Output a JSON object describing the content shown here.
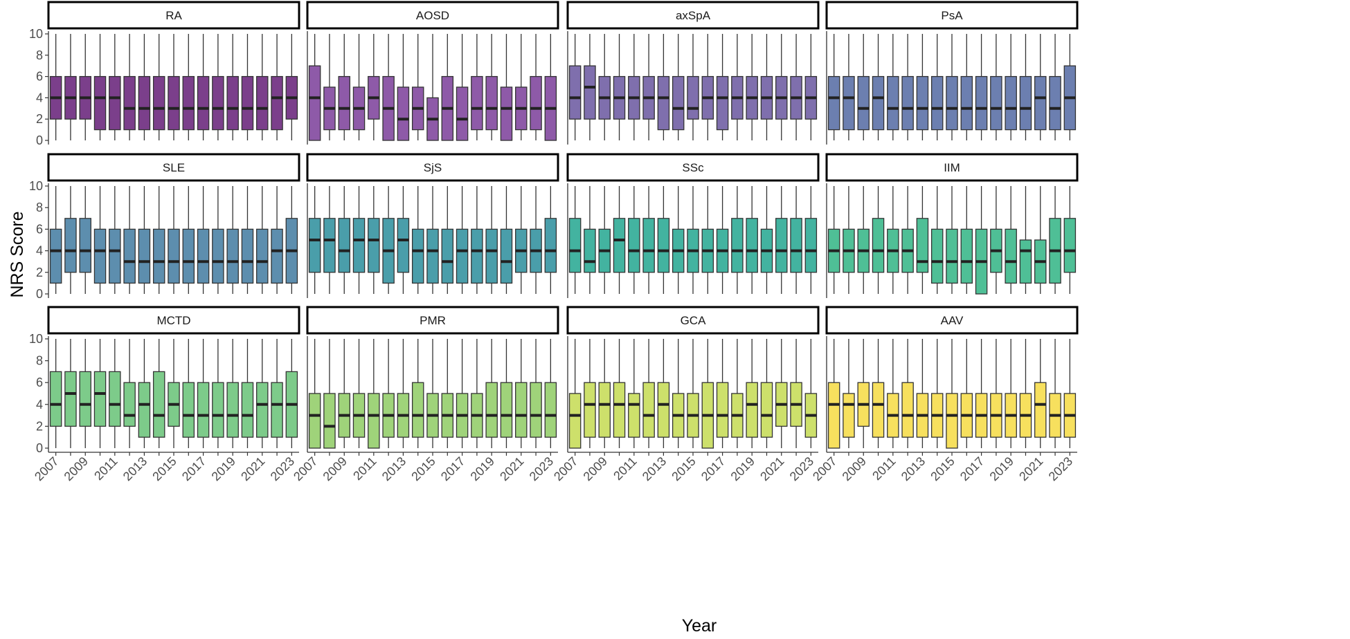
{
  "chart_data": {
    "type": "boxplot",
    "layout": "facet-grid",
    "xlabel": "Year",
    "ylabel": "NRS Score",
    "ylim": [
      0,
      10
    ],
    "yticks": [
      0,
      2,
      4,
      6,
      8,
      10
    ],
    "years": [
      2007,
      2008,
      2009,
      2010,
      2011,
      2012,
      2013,
      2014,
      2015,
      2016,
      2017,
      2018,
      2019,
      2020,
      2021,
      2022,
      2023
    ],
    "xtick_labels": [
      "2007",
      "2009",
      "2011",
      "2013",
      "2015",
      "2017",
      "2019",
      "2021",
      "2023"
    ],
    "panels": [
      {
        "name": "RA",
        "color": "#7b3f8b",
        "q1": [
          2,
          2,
          2,
          1,
          1,
          1,
          1,
          1,
          1,
          1,
          1,
          1,
          1,
          1,
          1,
          1,
          2
        ],
        "med": [
          4,
          4,
          4,
          4,
          4,
          3,
          3,
          3,
          3,
          3,
          3,
          3,
          3,
          3,
          3,
          4,
          4
        ],
        "q3": [
          6,
          6,
          6,
          6,
          6,
          6,
          6,
          6,
          6,
          6,
          6,
          6,
          6,
          6,
          6,
          6,
          6
        ],
        "lo": [
          0,
          0,
          0,
          0,
          0,
          0,
          0,
          0,
          0,
          0,
          0,
          0,
          0,
          0,
          0,
          0,
          0
        ],
        "hi": [
          10,
          10,
          10,
          10,
          10,
          10,
          10,
          10,
          10,
          10,
          10,
          10,
          10,
          10,
          10,
          10,
          10
        ]
      },
      {
        "name": "AOSD",
        "color": "#8e5aa8",
        "q1": [
          0,
          1,
          1,
          1,
          2,
          0,
          0,
          1,
          0,
          0,
          0,
          1,
          1,
          0,
          1,
          1,
          0
        ],
        "med": [
          4,
          3,
          3,
          3,
          4,
          3,
          2,
          3,
          2,
          3,
          2,
          3,
          3,
          3,
          3,
          3,
          3
        ],
        "q3": [
          7,
          5,
          6,
          5,
          6,
          6,
          5,
          5,
          4,
          6,
          5,
          6,
          6,
          5,
          5,
          6,
          6
        ],
        "lo": [
          0,
          0,
          0,
          0,
          0,
          0,
          0,
          0,
          0,
          0,
          0,
          0,
          0,
          0,
          0,
          0,
          0
        ],
        "hi": [
          10,
          10,
          10,
          10,
          10,
          10,
          10,
          10,
          10,
          10,
          10,
          10,
          10,
          10,
          10,
          10,
          10
        ]
      },
      {
        "name": "axSpA",
        "color": "#7f6fad",
        "q1": [
          2,
          2,
          2,
          2,
          2,
          2,
          1,
          1,
          2,
          2,
          1,
          2,
          2,
          2,
          2,
          2,
          2
        ],
        "med": [
          4,
          5,
          4,
          4,
          4,
          4,
          4,
          3,
          3,
          4,
          4,
          4,
          4,
          4,
          4,
          4,
          4
        ],
        "q3": [
          7,
          7,
          6,
          6,
          6,
          6,
          6,
          6,
          6,
          6,
          6,
          6,
          6,
          6,
          6,
          6,
          6
        ],
        "lo": [
          0,
          0,
          0,
          0,
          0,
          0,
          0,
          0,
          0,
          0,
          0,
          0,
          0,
          0,
          0,
          0,
          0
        ],
        "hi": [
          10,
          10,
          10,
          10,
          10,
          10,
          10,
          10,
          10,
          10,
          10,
          10,
          10,
          10,
          10,
          10,
          10
        ]
      },
      {
        "name": "PsA",
        "color": "#6c7fb0",
        "q1": [
          1,
          1,
          1,
          1,
          1,
          1,
          1,
          1,
          1,
          1,
          1,
          1,
          1,
          1,
          1,
          1,
          1
        ],
        "med": [
          4,
          4,
          3,
          4,
          3,
          3,
          3,
          3,
          3,
          3,
          3,
          3,
          3,
          3,
          4,
          3,
          4
        ],
        "q3": [
          6,
          6,
          6,
          6,
          6,
          6,
          6,
          6,
          6,
          6,
          6,
          6,
          6,
          6,
          6,
          6,
          7
        ],
        "lo": [
          0,
          0,
          0,
          0,
          0,
          0,
          0,
          0,
          0,
          0,
          0,
          0,
          0,
          0,
          0,
          0,
          0
        ],
        "hi": [
          10,
          10,
          10,
          10,
          10,
          10,
          10,
          10,
          10,
          10,
          10,
          10,
          10,
          10,
          10,
          10,
          10
        ]
      },
      {
        "name": "SLE",
        "color": "#5d8eae",
        "q1": [
          1,
          2,
          2,
          1,
          1,
          1,
          1,
          1,
          1,
          1,
          1,
          1,
          1,
          1,
          1,
          1,
          1
        ],
        "med": [
          4,
          4,
          4,
          4,
          4,
          3,
          3,
          3,
          3,
          3,
          3,
          3,
          3,
          3,
          3,
          4,
          4
        ],
        "q3": [
          6,
          7,
          7,
          6,
          6,
          6,
          6,
          6,
          6,
          6,
          6,
          6,
          6,
          6,
          6,
          6,
          7
        ],
        "lo": [
          0,
          0,
          0,
          0,
          0,
          0,
          0,
          0,
          0,
          0,
          0,
          0,
          0,
          0,
          0,
          0,
          0
        ],
        "hi": [
          10,
          10,
          10,
          10,
          10,
          10,
          10,
          10,
          10,
          10,
          10,
          10,
          10,
          10,
          10,
          10,
          10
        ]
      },
      {
        "name": "SjS",
        "color": "#4a9eaa",
        "q1": [
          2,
          2,
          2,
          2,
          2,
          1,
          2,
          1,
          1,
          1,
          1,
          1,
          1,
          1,
          2,
          2,
          2
        ],
        "med": [
          5,
          5,
          4,
          5,
          5,
          4,
          5,
          4,
          4,
          3,
          4,
          4,
          4,
          3,
          4,
          4,
          4
        ],
        "q3": [
          7,
          7,
          7,
          7,
          7,
          7,
          7,
          6,
          6,
          6,
          6,
          6,
          6,
          6,
          6,
          6,
          7
        ],
        "lo": [
          0,
          0,
          0,
          0,
          0,
          0,
          0,
          0,
          0,
          0,
          0,
          0,
          0,
          0,
          0,
          0,
          0
        ],
        "hi": [
          10,
          10,
          10,
          10,
          10,
          10,
          10,
          10,
          10,
          10,
          10,
          10,
          10,
          10,
          10,
          10,
          10
        ]
      },
      {
        "name": "SSc",
        "color": "#43b3a0",
        "q1": [
          2,
          2,
          2,
          2,
          2,
          2,
          2,
          2,
          2,
          2,
          2,
          2,
          2,
          2,
          2,
          2,
          2
        ],
        "med": [
          4,
          3,
          4,
          5,
          4,
          4,
          4,
          4,
          4,
          4,
          4,
          4,
          4,
          4,
          4,
          4,
          4
        ],
        "q3": [
          7,
          6,
          6,
          7,
          7,
          7,
          7,
          6,
          6,
          6,
          6,
          7,
          7,
          6,
          7,
          7,
          7
        ],
        "lo": [
          0,
          0,
          0,
          0,
          0,
          0,
          0,
          0,
          0,
          0,
          0,
          0,
          0,
          0,
          0,
          0,
          0
        ],
        "hi": [
          10,
          10,
          10,
          10,
          10,
          10,
          10,
          10,
          10,
          10,
          10,
          10,
          10,
          10,
          10,
          10,
          10
        ]
      },
      {
        "name": "IIM",
        "color": "#4fbf96",
        "q1": [
          2,
          2,
          2,
          2,
          2,
          2,
          2,
          1,
          1,
          1,
          0,
          2,
          1,
          1,
          1,
          1,
          2
        ],
        "med": [
          4,
          4,
          4,
          4,
          4,
          4,
          3,
          3,
          3,
          3,
          3,
          4,
          3,
          4,
          3,
          4,
          4
        ],
        "q3": [
          6,
          6,
          6,
          7,
          6,
          6,
          7,
          6,
          6,
          6,
          6,
          6,
          6,
          5,
          5,
          7,
          7
        ],
        "lo": [
          0,
          0,
          0,
          0,
          0,
          0,
          0,
          0,
          0,
          0,
          0,
          0,
          0,
          0,
          0,
          0,
          0
        ],
        "hi": [
          10,
          10,
          10,
          10,
          10,
          10,
          10,
          10,
          10,
          10,
          10,
          10,
          10,
          10,
          10,
          10,
          10
        ]
      },
      {
        "name": "MCTD",
        "color": "#7dcb8a",
        "q1": [
          2,
          2,
          2,
          2,
          2,
          2,
          1,
          1,
          2,
          1,
          1,
          1,
          1,
          1,
          1,
          1,
          1
        ],
        "med": [
          4,
          5,
          4,
          5,
          4,
          3,
          4,
          3,
          4,
          3,
          3,
          3,
          3,
          3,
          4,
          4,
          4
        ],
        "q3": [
          7,
          7,
          7,
          7,
          7,
          6,
          6,
          7,
          6,
          6,
          6,
          6,
          6,
          6,
          6,
          6,
          7
        ],
        "lo": [
          0,
          0,
          0,
          0,
          0,
          0,
          0,
          0,
          0,
          0,
          0,
          0,
          0,
          0,
          0,
          0,
          0
        ],
        "hi": [
          10,
          10,
          10,
          10,
          10,
          10,
          10,
          10,
          10,
          10,
          10,
          10,
          10,
          10,
          10,
          10,
          10
        ]
      },
      {
        "name": "PMR",
        "color": "#9fd37a",
        "q1": [
          0,
          0,
          1,
          1,
          0,
          1,
          1,
          1,
          1,
          1,
          1,
          1,
          1,
          1,
          1,
          1,
          1
        ],
        "med": [
          3,
          2,
          3,
          3,
          3,
          3,
          3,
          3,
          3,
          3,
          3,
          3,
          3,
          3,
          3,
          3,
          3
        ],
        "q3": [
          5,
          5,
          5,
          5,
          5,
          5,
          5,
          6,
          5,
          5,
          5,
          5,
          6,
          6,
          6,
          6,
          6
        ],
        "lo": [
          0,
          0,
          0,
          0,
          0,
          0,
          0,
          0,
          0,
          0,
          0,
          0,
          0,
          0,
          0,
          0,
          0
        ],
        "hi": [
          10,
          10,
          10,
          10,
          10,
          10,
          10,
          10,
          10,
          10,
          10,
          10,
          10,
          10,
          10,
          10,
          10
        ]
      },
      {
        "name": "GCA",
        "color": "#cde06b",
        "q1": [
          0,
          1,
          1,
          1,
          1,
          1,
          1,
          1,
          1,
          0,
          1,
          1,
          1,
          1,
          2,
          2,
          1
        ],
        "med": [
          3,
          4,
          4,
          4,
          4,
          3,
          4,
          3,
          3,
          3,
          3,
          3,
          4,
          3,
          4,
          4,
          3
        ],
        "q3": [
          5,
          6,
          6,
          6,
          5,
          6,
          6,
          5,
          5,
          6,
          6,
          5,
          6,
          6,
          6,
          6,
          5
        ],
        "lo": [
          0,
          0,
          0,
          0,
          0,
          0,
          0,
          0,
          0,
          0,
          0,
          0,
          0,
          0,
          0,
          0,
          0
        ],
        "hi": [
          10,
          10,
          10,
          10,
          10,
          10,
          10,
          10,
          10,
          10,
          10,
          10,
          10,
          10,
          10,
          10,
          10
        ]
      },
      {
        "name": "AAV",
        "color": "#f7e05e",
        "q1": [
          0,
          1,
          2,
          1,
          1,
          1,
          1,
          1,
          0,
          1,
          1,
          1,
          1,
          1,
          1,
          1,
          1
        ],
        "med": [
          4,
          4,
          4,
          4,
          3,
          3,
          3,
          3,
          3,
          3,
          3,
          3,
          3,
          3,
          4,
          3,
          3
        ],
        "q3": [
          6,
          5,
          6,
          6,
          5,
          6,
          5,
          5,
          5,
          5,
          5,
          5,
          5,
          5,
          6,
          5,
          5
        ],
        "lo": [
          0,
          0,
          0,
          0,
          0,
          0,
          0,
          0,
          0,
          0,
          0,
          0,
          0,
          0,
          0,
          0,
          0
        ],
        "hi": [
          10,
          10,
          10,
          10,
          10,
          10,
          10,
          10,
          10,
          10,
          10,
          10,
          10,
          10,
          10,
          10,
          10
        ]
      }
    ]
  }
}
